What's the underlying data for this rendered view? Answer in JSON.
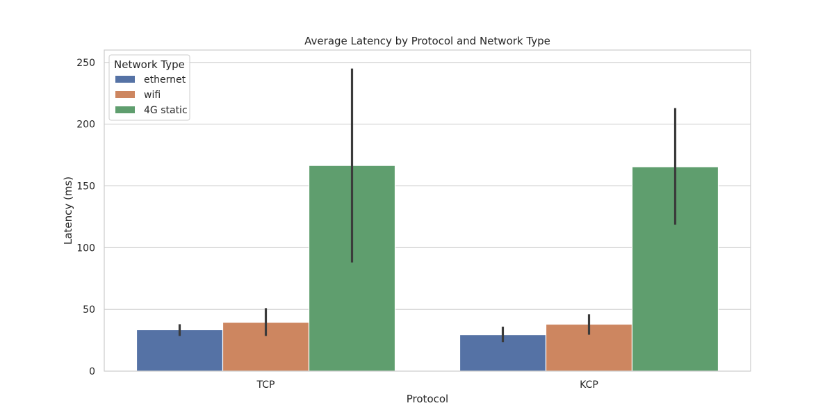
{
  "chart_data": {
    "type": "bar",
    "title": "Average Latency by Protocol and Network Type",
    "xlabel": "Protocol",
    "ylabel": "Latency (ms)",
    "categories": [
      "TCP",
      "KCP"
    ],
    "ylim": [
      0,
      260
    ],
    "yticks": [
      0,
      50,
      100,
      150,
      200,
      250
    ],
    "grid": true,
    "legend": {
      "title": "Network Type",
      "placement": "top-left"
    },
    "series": [
      {
        "name": "ethernet",
        "color": "#5572a5",
        "values": [
          33.5,
          29.5
        ],
        "ci_low": [
          28.5,
          23.5
        ],
        "ci_high": [
          38,
          36
        ]
      },
      {
        "name": "wifi",
        "color": "#cd8660",
        "values": [
          39.5,
          38
        ],
        "ci_low": [
          28.5,
          29.5
        ],
        "ci_high": [
          51,
          46
        ]
      },
      {
        "name": "4G static",
        "color": "#5f9e6e",
        "values": [
          166.5,
          165.5
        ],
        "ci_low": [
          88,
          118.5
        ],
        "ci_high": [
          245,
          213
        ]
      }
    ],
    "errorbar_color": "#3b3b3b"
  }
}
